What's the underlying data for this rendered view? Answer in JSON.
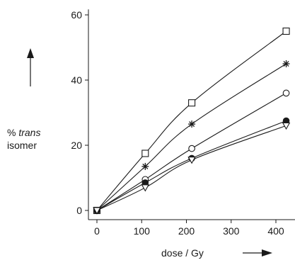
{
  "chart_data": {
    "type": "line",
    "title": "",
    "xlabel": "dose / Gy",
    "ylabel_prefix": "% ",
    "ylabel_italic": "trans",
    "ylabel_suffix": "isomer",
    "xlim": [
      -20,
      450
    ],
    "ylim": [
      -2,
      63
    ],
    "x_ticks": [
      0,
      100,
      200,
      300,
      400
    ],
    "y_ticks": [
      0,
      20,
      40,
      60
    ],
    "grid": false,
    "legend": "none",
    "series": [
      {
        "marker": "square",
        "x": [
          0,
          108,
          212,
          423
        ],
        "y": [
          0,
          17.5,
          33,
          55
        ]
      },
      {
        "marker": "asterisk",
        "x": [
          0,
          108,
          212,
          423
        ],
        "y": [
          0,
          13.5,
          26.5,
          45
        ]
      },
      {
        "marker": "circle-open",
        "x": [
          0,
          108,
          212,
          423
        ],
        "y": [
          0,
          9.5,
          19,
          36
        ]
      },
      {
        "marker": "circle-filled",
        "x": [
          0,
          108,
          212,
          423
        ],
        "y": [
          0,
          8.5,
          16,
          27.5
        ]
      },
      {
        "marker": "triangle-down",
        "x": [
          0,
          108,
          212,
          423
        ],
        "y": [
          0,
          7,
          15.5,
          26
        ]
      }
    ]
  }
}
